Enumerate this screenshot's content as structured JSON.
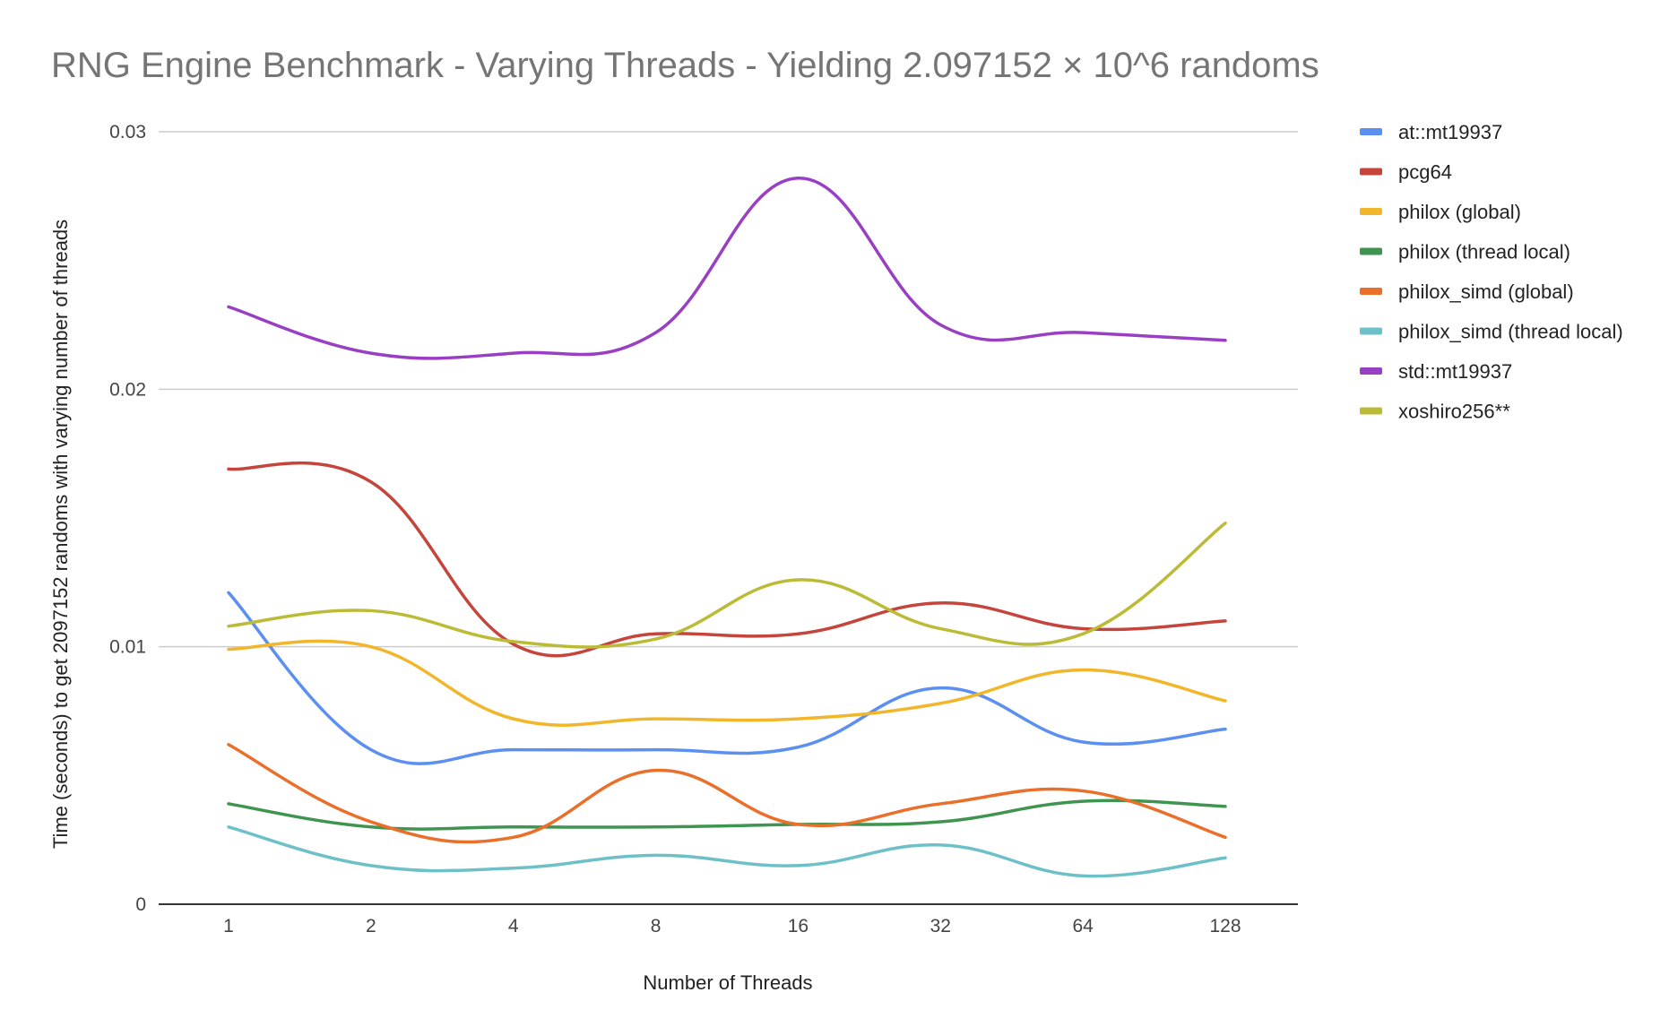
{
  "chart_data": {
    "type": "line",
    "title": "RNG Engine Benchmark - Varying Threads - Yielding 2.097152 × 10^6 randoms",
    "xlabel": "Number of Threads",
    "ylabel": "Time (seconds) to get 2097152 randoms with varying number of threads",
    "categories": [
      "1",
      "2",
      "4",
      "8",
      "16",
      "32",
      "64",
      "128"
    ],
    "ylim": [
      0,
      0.03
    ],
    "yticks": [
      {
        "value": 0,
        "label": "0"
      },
      {
        "value": 0.01,
        "label": "0.01"
      },
      {
        "value": 0.02,
        "label": "0.02"
      },
      {
        "value": 0.03,
        "label": "0.03"
      }
    ],
    "grid": true,
    "smooth": true,
    "legend_position": "right",
    "series": [
      {
        "name": "at::mt19937",
        "color": "#5b8ff0",
        "values": [
          0.0121,
          0.006,
          0.006,
          0.006,
          0.0061,
          0.0084,
          0.0063,
          0.0068
        ]
      },
      {
        "name": "pcg64",
        "color": "#c4453c",
        "values": [
          0.0169,
          0.0164,
          0.0101,
          0.0105,
          0.0105,
          0.0117,
          0.0107,
          0.011
        ]
      },
      {
        "name": "philox (global)",
        "color": "#f1b62a",
        "values": [
          0.0099,
          0.01,
          0.0072,
          0.0072,
          0.0072,
          0.0078,
          0.0091,
          0.0079
        ]
      },
      {
        "name": "philox (thread local)",
        "color": "#3f9450",
        "values": [
          0.0039,
          0.003,
          0.003,
          0.003,
          0.0031,
          0.0032,
          0.004,
          0.0038
        ]
      },
      {
        "name": "philox_simd (global)",
        "color": "#ea6f2a",
        "values": [
          0.0062,
          0.0032,
          0.0026,
          0.0052,
          0.0031,
          0.0039,
          0.0044,
          0.0026
        ]
      },
      {
        "name": "philox_simd (thread local)",
        "color": "#6ec0c8",
        "values": [
          0.003,
          0.0015,
          0.0014,
          0.0019,
          0.0015,
          0.0023,
          0.0011,
          0.0018
        ]
      },
      {
        "name": "std::mt19937",
        "color": "#993fc4",
        "values": [
          0.0232,
          0.0214,
          0.0214,
          0.0222,
          0.0282,
          0.0225,
          0.0222,
          0.0219
        ]
      },
      {
        "name": "xoshiro256**",
        "color": "#bcbb37",
        "values": [
          0.0108,
          0.0114,
          0.0102,
          0.0103,
          0.0126,
          0.0107,
          0.0105,
          0.0148
        ]
      }
    ]
  }
}
